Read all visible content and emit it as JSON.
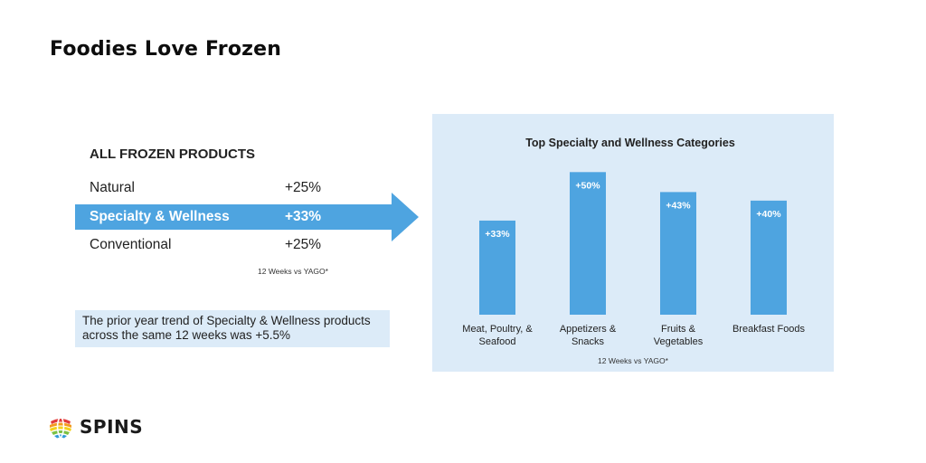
{
  "title": "Foodies Love Frozen",
  "table": {
    "heading": "ALL FROZEN PRODUCTS",
    "rows": [
      {
        "label": "Natural",
        "value": "+25%"
      },
      {
        "label": "Specialty & Wellness",
        "value": "+33%"
      },
      {
        "label": "Conventional",
        "value": "+25%"
      }
    ],
    "note": "12 Weeks vs YAGO*"
  },
  "trend_note": "The prior year trend of Specialty & Wellness products across the same 12 weeks was +5.5%",
  "colors": {
    "accent": "#4ea4e0",
    "panel": "#dcebf8",
    "text": "#222222"
  },
  "chart_data": {
    "type": "bar",
    "title": "Top Specialty and Wellness Categories",
    "categories": [
      [
        "Meat, Poultry, &",
        "Seafood"
      ],
      [
        "Appetizers &",
        "Snacks"
      ],
      [
        "Fruits &",
        "Vegetables"
      ],
      [
        "Breakfast Foods"
      ]
    ],
    "values": [
      33,
      50,
      43,
      40
    ],
    "data_labels": [
      "+33%",
      "+50%",
      "+43%",
      "+40%"
    ],
    "ylim": [
      0,
      52
    ],
    "grid": false,
    "note": "12 Weeks vs YAGO*",
    "bar_color": "#4ea4e0"
  },
  "logo": {
    "text": "SPINS",
    "mark_icon": "globe-icon"
  }
}
